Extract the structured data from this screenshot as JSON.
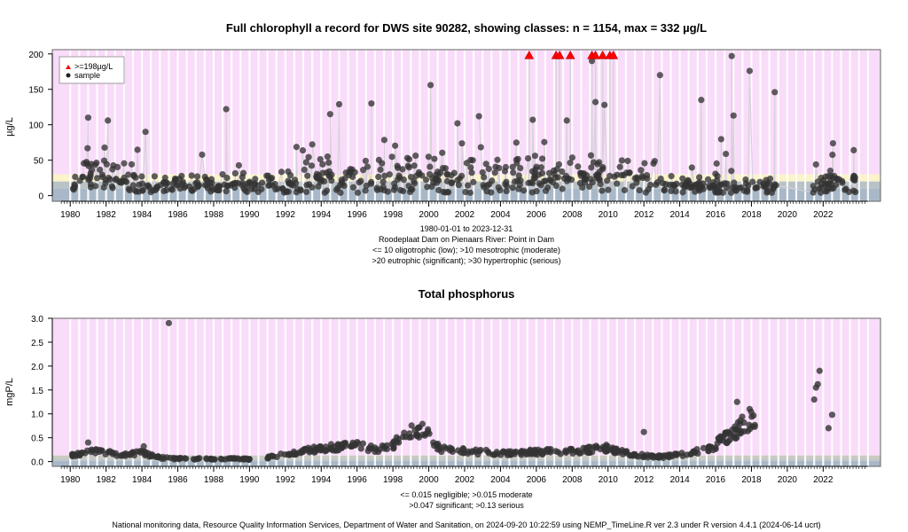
{
  "chart_data": [
    {
      "type": "scatter",
      "title": "Full chlorophyll a record for DWS site 90282, showing classes: n = 1154, max = 332 µg/L",
      "ylabel": "µg/L",
      "xlim": [
        1979.0,
        2025.2
      ],
      "ylim": [
        -8,
        206
      ],
      "yticks": [
        0,
        50,
        100,
        150,
        200
      ],
      "xticks": [
        1980,
        1982,
        1984,
        1986,
        1988,
        1990,
        1992,
        1994,
        1996,
        1998,
        2000,
        2002,
        2004,
        2006,
        2008,
        2010,
        2012,
        2014,
        2016,
        2018,
        2020,
        2022
      ],
      "bands": [
        {
          "from": -8,
          "to": 10,
          "color": "#a9b8c8",
          "label": "oligotrophic"
        },
        {
          "from": 10,
          "to": 20,
          "color": "#b9c2c6",
          "label": "mesotrophic"
        },
        {
          "from": 20,
          "to": 30,
          "color": "#fbf3c9",
          "label": "eutrophic"
        },
        {
          "from": 30,
          "to": 206,
          "color": "#f9dcf9",
          "label": "hypertrophic"
        }
      ],
      "legend": {
        "position": "top-left",
        "entries": [
          ">=198µg/L",
          "sample"
        ]
      },
      "exceed_threshold": 198,
      "exceed_marker_y": 198,
      "exceed_x": [
        2005.6,
        2007.1,
        2007.3,
        2007.9,
        2009.1,
        2009.3,
        2009.7,
        2010.1,
        2010.3
      ],
      "outliers": [
        {
          "x": 1981.0,
          "y": 110
        },
        {
          "x": 1982.1,
          "y": 106
        },
        {
          "x": 1984.2,
          "y": 90
        },
        {
          "x": 1988.7,
          "y": 122
        },
        {
          "x": 1994.5,
          "y": 115
        },
        {
          "x": 1995.0,
          "y": 129
        },
        {
          "x": 1996.8,
          "y": 130
        },
        {
          "x": 2000.1,
          "y": 156
        },
        {
          "x": 2001.6,
          "y": 102
        },
        {
          "x": 2002.8,
          "y": 112
        },
        {
          "x": 2005.8,
          "y": 107
        },
        {
          "x": 2007.7,
          "y": 106
        },
        {
          "x": 2009.1,
          "y": 190
        },
        {
          "x": 2009.3,
          "y": 132
        },
        {
          "x": 2009.8,
          "y": 128
        },
        {
          "x": 2012.9,
          "y": 170
        },
        {
          "x": 2015.2,
          "y": 135
        },
        {
          "x": 2016.9,
          "y": 197
        },
        {
          "x": 2017.0,
          "y": 113
        },
        {
          "x": 2017.9,
          "y": 176
        },
        {
          "x": 2019.3,
          "y": 146
        },
        {
          "x": 2021.6,
          "y": 44
        },
        {
          "x": 2022.4,
          "y": 35
        },
        {
          "x": 2023.7,
          "y": 27
        },
        {
          "x": 2023.8,
          "y": 5
        }
      ],
      "subtitle_lines": [
        "1980-01-01 to 2023-12-31",
        "Roodeplaat Dam on Pienaars River: Point in Dam",
        "<= 10 oligotrophic (low); >10 mesotrophic (moderate)",
        ">20 eutrophic (significant); >30 hypertrophic (serious)"
      ]
    },
    {
      "type": "scatter",
      "title": "Total phosphorus",
      "ylabel": "mgP/L",
      "xlim": [
        1979.0,
        2025.2
      ],
      "ylim": [
        -0.1,
        3.0
      ],
      "yticks": [
        0.0,
        0.5,
        1.0,
        1.5,
        2.0,
        2.5,
        3.0
      ],
      "ytick_labels": [
        "0.0",
        "0.5",
        "1.0",
        "1.5",
        "2.0",
        "2.5",
        "3.0"
      ],
      "xticks": [
        1980,
        1982,
        1984,
        1986,
        1988,
        1990,
        1992,
        1994,
        1996,
        1998,
        2000,
        2002,
        2004,
        2006,
        2008,
        2010,
        2012,
        2014,
        2016,
        2018,
        2020,
        2022
      ],
      "bands": [
        {
          "from": -0.1,
          "to": 0.015,
          "color": "#a9b8c8",
          "label": "negligible"
        },
        {
          "from": 0.015,
          "to": 0.047,
          "color": "#b9c2c6",
          "label": "moderate"
        },
        {
          "from": 0.047,
          "to": 0.13,
          "color": "#c9cbc3",
          "label": "significant"
        },
        {
          "from": 0.13,
          "to": 3.0,
          "color": "#f9dcf9",
          "label": "serious"
        }
      ],
      "trend": [
        {
          "x": 1980.0,
          "y": 0.12
        },
        {
          "x": 1981.0,
          "y": 0.22
        },
        {
          "x": 1982.0,
          "y": 0.18
        },
        {
          "x": 1983.0,
          "y": 0.15
        },
        {
          "x": 1984.0,
          "y": 0.18
        },
        {
          "x": 1985.0,
          "y": 0.08
        },
        {
          "x": 1986.0,
          "y": 0.06
        },
        {
          "x": 1987.0,
          "y": 0.06
        },
        {
          "x": 1988.0,
          "y": 0.05
        },
        {
          "x": 1989.0,
          "y": 0.06
        },
        {
          "x": 1990.0,
          "y": 0.05
        },
        {
          "x": 1991.0,
          "y": 0.08
        },
        {
          "x": 1992.0,
          "y": 0.15
        },
        {
          "x": 1993.0,
          "y": 0.22
        },
        {
          "x": 1994.0,
          "y": 0.28
        },
        {
          "x": 1995.0,
          "y": 0.3
        },
        {
          "x": 1996.0,
          "y": 0.33
        },
        {
          "x": 1997.0,
          "y": 0.25
        },
        {
          "x": 1997.8,
          "y": 0.28
        },
        {
          "x": 1998.5,
          "y": 0.55
        },
        {
          "x": 1999.3,
          "y": 0.62
        },
        {
          "x": 2000.0,
          "y": 0.62
        },
        {
          "x": 2000.6,
          "y": 0.25
        },
        {
          "x": 2002.0,
          "y": 0.22
        },
        {
          "x": 2004.0,
          "y": 0.18
        },
        {
          "x": 2006.0,
          "y": 0.2
        },
        {
          "x": 2008.0,
          "y": 0.22
        },
        {
          "x": 2010.0,
          "y": 0.28
        },
        {
          "x": 2011.0,
          "y": 0.18
        },
        {
          "x": 2012.0,
          "y": 0.12
        },
        {
          "x": 2013.0,
          "y": 0.1
        },
        {
          "x": 2014.0,
          "y": 0.14
        },
        {
          "x": 2015.0,
          "y": 0.22
        },
        {
          "x": 2016.0,
          "y": 0.35
        },
        {
          "x": 2016.8,
          "y": 0.55
        },
        {
          "x": 2017.5,
          "y": 0.8
        },
        {
          "x": 2018.1,
          "y": 0.95
        }
      ],
      "outliers": [
        {
          "x": 1985.5,
          "y": 2.9
        },
        {
          "x": 1981.0,
          "y": 0.4
        },
        {
          "x": 1984.1,
          "y": 0.32
        },
        {
          "x": 2012.0,
          "y": 0.62
        },
        {
          "x": 2017.2,
          "y": 1.25
        },
        {
          "x": 2017.9,
          "y": 1.1
        },
        {
          "x": 2021.5,
          "y": 1.3
        },
        {
          "x": 2021.6,
          "y": 1.55
        },
        {
          "x": 2021.7,
          "y": 1.62
        },
        {
          "x": 2021.8,
          "y": 1.9
        },
        {
          "x": 2022.3,
          "y": 0.7
        },
        {
          "x": 2022.5,
          "y": 0.98
        }
      ],
      "subtitle_lines": [
        "<= 0.015 negligible; >0.015 moderate",
        ">0.047 significant; >0.13 serious"
      ]
    }
  ],
  "footer": "National monitoring data, Resource Quality Information Services, Department of Water and Sanitation, on 2024-09-20 10:22:59 using NEMP_TimeLine.R ver 2.3 under R version 4.4.1 (2024-06-14 ucrt)"
}
